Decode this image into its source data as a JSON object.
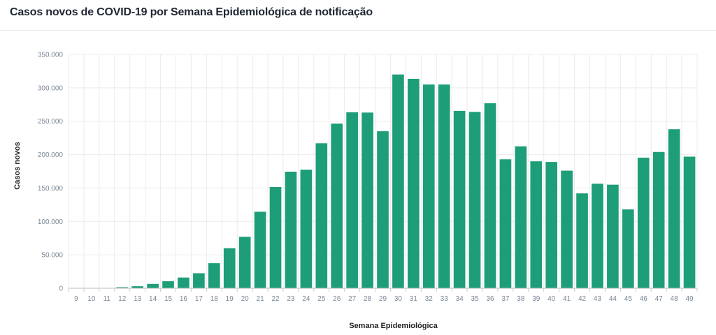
{
  "title": "Casos novos de COVID-19 por Semana Epidemiológica de notificação",
  "chart_data": {
    "type": "bar",
    "xlabel": "Semana Epidemiológica",
    "ylabel": "Casos novos",
    "ylim": [
      0,
      350000
    ],
    "yticks": [
      0,
      50000,
      100000,
      150000,
      200000,
      250000,
      300000,
      350000
    ],
    "ytick_labels": [
      "0",
      "50.000",
      "100.000",
      "150.000",
      "200.000",
      "250.000",
      "300.000",
      "350.000"
    ],
    "bar_color": "#1e9e78",
    "grid_color": "#ebebeb",
    "categories": [
      "9",
      "10",
      "11",
      "12",
      "13",
      "14",
      "15",
      "16",
      "17",
      "18",
      "19",
      "20",
      "21",
      "22",
      "23",
      "24",
      "25",
      "26",
      "27",
      "28",
      "29",
      "30",
      "31",
      "32",
      "33",
      "34",
      "35",
      "36",
      "37",
      "38",
      "39",
      "40",
      "41",
      "42",
      "43",
      "44",
      "45",
      "46",
      "47",
      "48",
      "49"
    ],
    "values": [
      200,
      400,
      500,
      1500,
      3000,
      6500,
      10500,
      16000,
      22500,
      37500,
      60000,
      77000,
      114500,
      151500,
      174500,
      177500,
      217000,
      246500,
      263500,
      263000,
      235000,
      320000,
      313500,
      305000,
      305000,
      265500,
      264000,
      277000,
      193000,
      212500,
      190000,
      189000,
      176000,
      142000,
      156500,
      155000,
      118000,
      195500,
      204000,
      238000,
      197000
    ]
  }
}
